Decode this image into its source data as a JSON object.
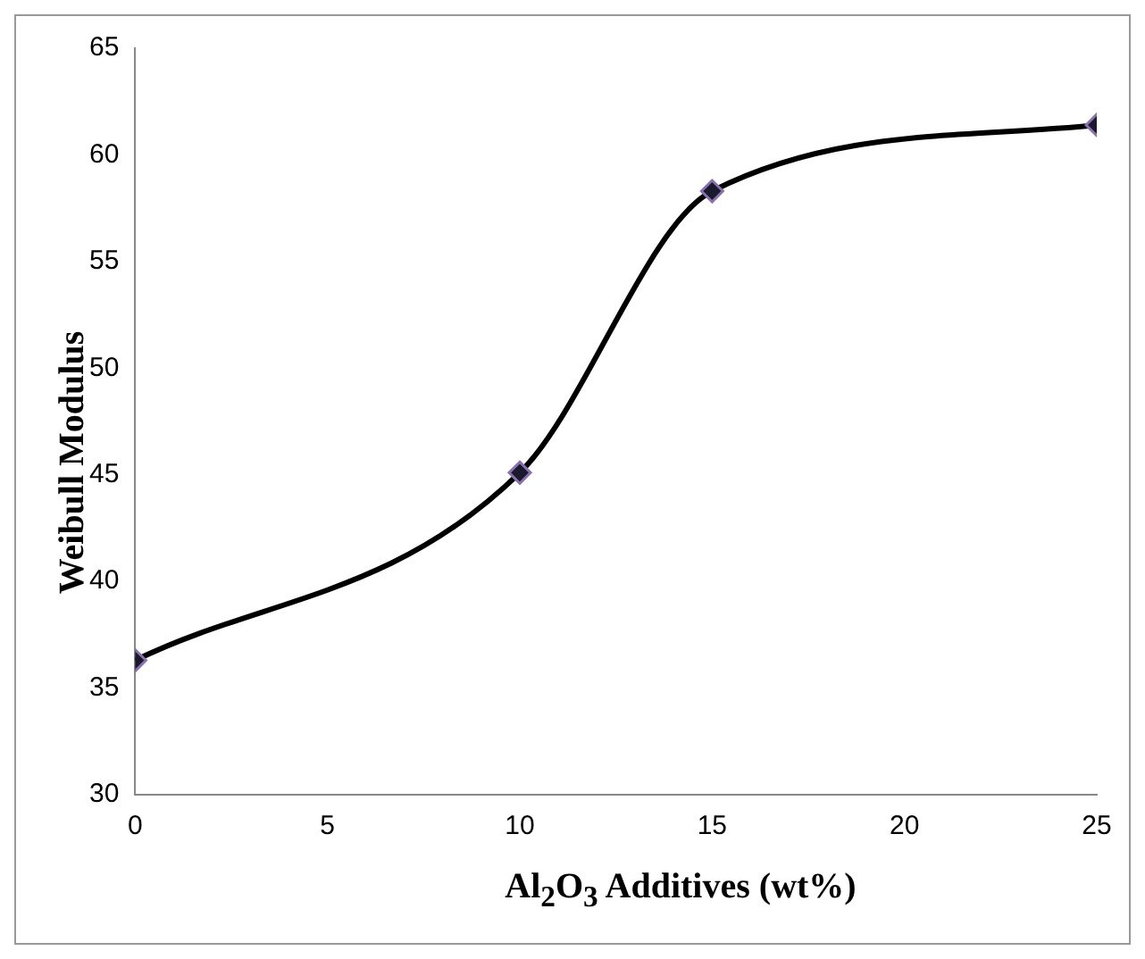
{
  "chart_data": {
    "type": "line",
    "xlabel": "Al$_{2}$O$_{3}$ Additives (wt%)",
    "ylabel": "Weibull Modulus",
    "x": [
      0,
      10,
      15,
      25
    ],
    "values": [
      36.3,
      45.1,
      58.3,
      61.4
    ],
    "color": "#000000",
    "marker": "diamond",
    "xlim": [
      0,
      25
    ],
    "xticks": [
      0,
      5,
      10,
      15,
      20,
      25
    ],
    "ylim": [
      30,
      65
    ],
    "yticks": [
      30,
      35,
      40,
      45,
      50,
      55,
      60,
      65
    ]
  }
}
